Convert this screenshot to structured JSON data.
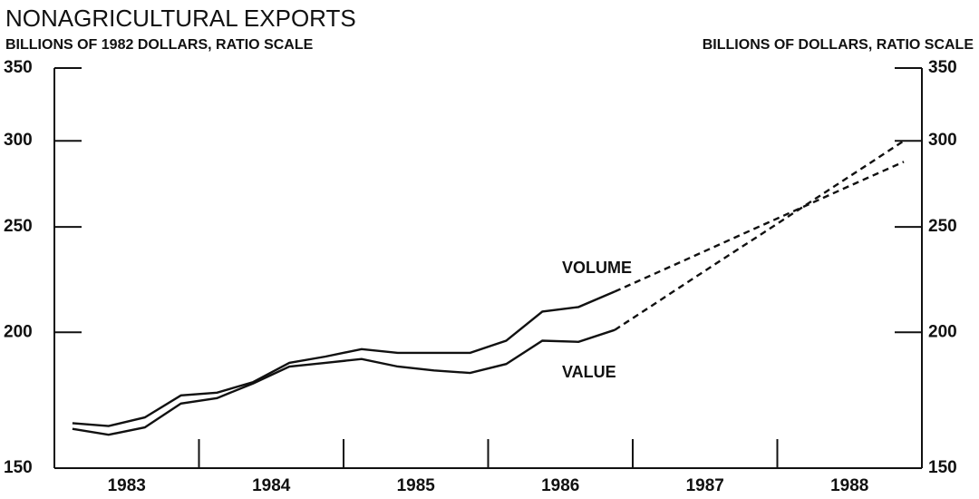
{
  "chart_data": {
    "type": "line",
    "title": "NONAGRICULTURAL EXPORTS",
    "ylabel": "BILLIONS OF 1982 DOLLARS, RATIO SCALE",
    "y2label": "BILLIONS OF DOLLARS, RATIO SCALE",
    "categories": [
      "1983",
      "1984",
      "1985",
      "1986",
      "1987",
      "1988"
    ],
    "x": [
      1983.125,
      1983.375,
      1983.625,
      1983.875,
      1984.125,
      1984.375,
      1984.625,
      1984.875,
      1985.125,
      1985.375,
      1985.625,
      1985.875,
      1986.125,
      1986.375,
      1986.625,
      1986.875,
      1987.125,
      1987.375,
      1987.625,
      1987.875,
      1988.125,
      1988.375,
      1988.625,
      1988.875
    ],
    "xlim": [
      1983,
      1989
    ],
    "xticks": [
      1984,
      1985,
      1986,
      1987,
      1988
    ],
    "ylim": [
      150,
      350
    ],
    "yticks": [
      150,
      200,
      250,
      300,
      350
    ],
    "y2lim": [
      150,
      350
    ],
    "y2ticks": [
      150,
      200,
      250,
      300,
      350
    ],
    "log_scale": true,
    "annotations": [
      "VOLUME",
      "VALUE"
    ],
    "series": [
      {
        "name": "VOLUME",
        "color": "#111111",
        "dashed_from": 1986.875,
        "values": [
          165,
          164,
          167,
          175,
          176,
          180,
          187.5,
          190,
          193,
          191.5,
          191.5,
          191.5,
          196.5,
          209,
          211,
          218,
          225.6,
          233.5,
          241.7,
          250.2,
          258.9,
          268,
          277.4,
          287
        ]
      },
      {
        "name": "VALUE",
        "color": "#111111",
        "dashed_from": 1986.875,
        "axis": "y2",
        "values": [
          163,
          161,
          163.5,
          172,
          174,
          179.5,
          186,
          187.5,
          189,
          186,
          184.5,
          183.5,
          187,
          196.5,
          196,
          201,
          211.3,
          222.2,
          233.6,
          245.5,
          258.1,
          271.4,
          285.3,
          300
        ]
      }
    ]
  }
}
